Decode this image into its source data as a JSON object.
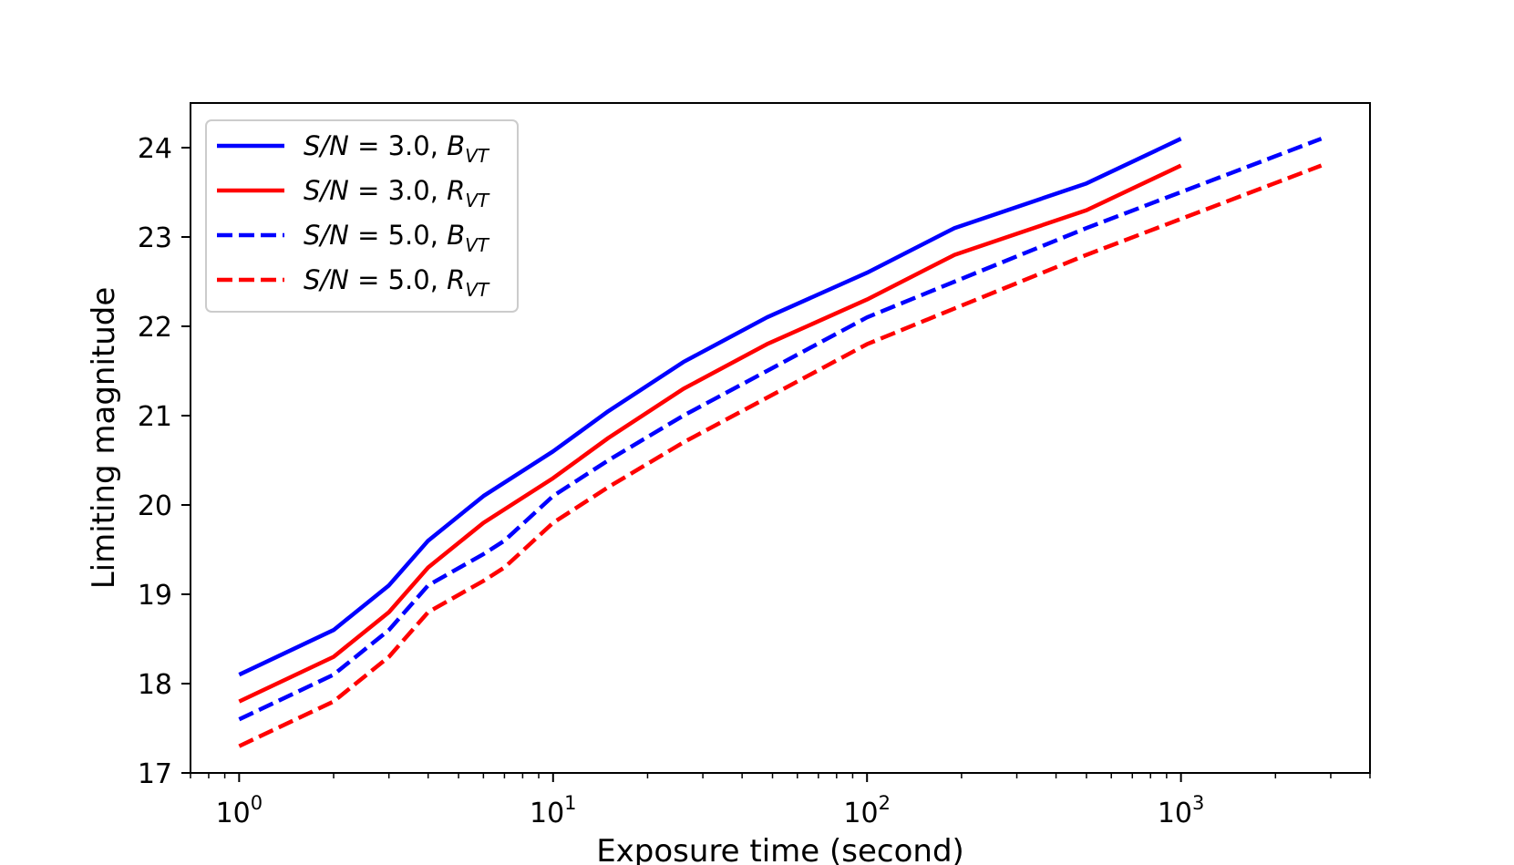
{
  "chart_data": {
    "type": "line",
    "title": "",
    "xlabel": "Exposure time (second)",
    "ylabel": "Limiting magnitude",
    "xscale": "log",
    "xlim": [
      0.7,
      4000
    ],
    "ylim": [
      17,
      24.5
    ],
    "x_major_ticks": [
      {
        "value": 1,
        "base": "10",
        "exp": "0"
      },
      {
        "value": 10,
        "base": "10",
        "exp": "1"
      },
      {
        "value": 100,
        "base": "10",
        "exp": "2"
      },
      {
        "value": 1000,
        "base": "10",
        "exp": "3"
      }
    ],
    "y_ticks": [
      17,
      18,
      19,
      20,
      21,
      22,
      23,
      24
    ],
    "grid": false,
    "legend_position": "top-left",
    "series": [
      {
        "name": "S/N = 3.0, B_VT",
        "legend": {
          "prefix": "S/N",
          "eq": " = 3.0, ",
          "band": "B",
          "sub": "VT"
        },
        "color": "#0000ff",
        "dash": "solid",
        "x": [
          1,
          2,
          3,
          4,
          6,
          10,
          15,
          26,
          48,
          100,
          190,
          500,
          1000
        ],
        "y": [
          18.1,
          18.6,
          19.1,
          19.6,
          20.1,
          20.6,
          21.05,
          21.6,
          22.1,
          22.6,
          23.1,
          23.6,
          24.1
        ]
      },
      {
        "name": "S/N = 3.0, R_VT",
        "legend": {
          "prefix": "S/N",
          "eq": " = 3.0, ",
          "band": "R",
          "sub": "VT"
        },
        "color": "#ff0000",
        "dash": "solid",
        "x": [
          1,
          2,
          3,
          4,
          6,
          10,
          15,
          26,
          48,
          100,
          190,
          500,
          1000
        ],
        "y": [
          17.8,
          18.3,
          18.8,
          19.3,
          19.8,
          20.3,
          20.75,
          21.3,
          21.8,
          22.3,
          22.8,
          23.3,
          23.8
        ]
      },
      {
        "name": "S/N = 5.0, B_VT",
        "legend": {
          "prefix": "S/N",
          "eq": " = 5.0, ",
          "band": "B",
          "sub": "VT"
        },
        "color": "#0000ff",
        "dash": "dashed",
        "x": [
          1,
          2,
          3,
          4,
          6,
          7,
          10,
          15,
          26,
          48,
          100,
          190,
          500,
          2800
        ],
        "y": [
          17.6,
          18.1,
          18.6,
          19.1,
          19.45,
          19.6,
          20.1,
          20.5,
          21.0,
          21.5,
          22.1,
          22.5,
          23.1,
          24.1
        ]
      },
      {
        "name": "S/N = 5.0, R_VT",
        "legend": {
          "prefix": "S/N",
          "eq": " = 5.0, ",
          "band": "R",
          "sub": "VT"
        },
        "color": "#ff0000",
        "dash": "dashed",
        "x": [
          1,
          2,
          3,
          4,
          6,
          7,
          10,
          15,
          26,
          48,
          100,
          190,
          500,
          2800
        ],
        "y": [
          17.3,
          17.8,
          18.3,
          18.8,
          19.15,
          19.3,
          19.8,
          20.2,
          20.7,
          21.2,
          21.8,
          22.2,
          22.8,
          23.8
        ]
      }
    ]
  }
}
